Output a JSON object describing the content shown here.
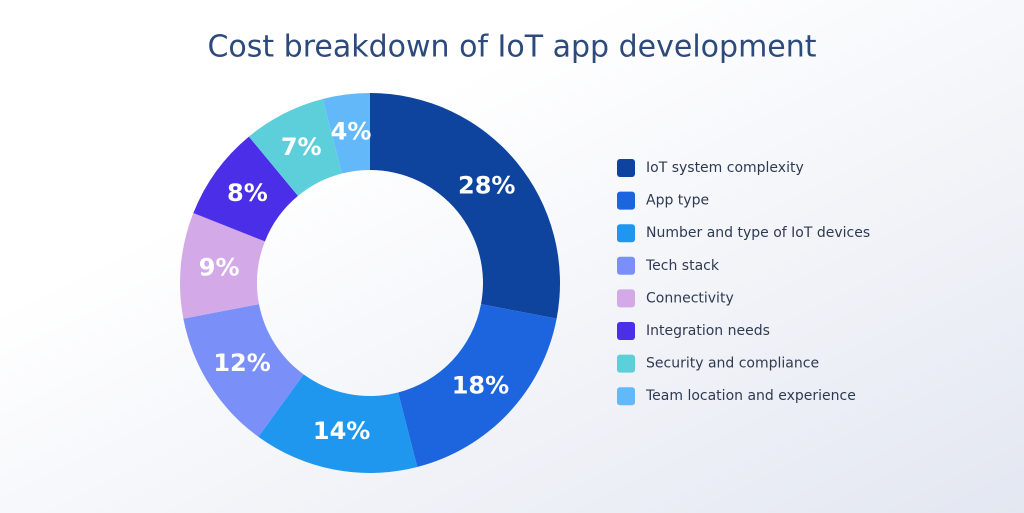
{
  "chart_data": {
    "type": "donut",
    "title": "Cost breakdown of IoT app development",
    "categories": [
      "IoT system complexity",
      "App type",
      "Number and type of IoT devices",
      "Tech stack",
      "Connectivity",
      "Integration needs",
      "Security and compliance",
      "Team location and experience"
    ],
    "values": [
      28,
      18,
      14,
      12,
      9,
      8,
      7,
      4
    ],
    "value_labels": [
      "28%",
      "18%",
      "14%",
      "12%",
      "9%",
      "8%",
      "7%",
      "4%"
    ],
    "colors": [
      "#0f449e",
      "#1d65de",
      "#1f97ee",
      "#7b8ff8",
      "#d3a9e8",
      "#4b2ee8",
      "#5dcfdb",
      "#63b8f9"
    ],
    "legend": "right"
  }
}
